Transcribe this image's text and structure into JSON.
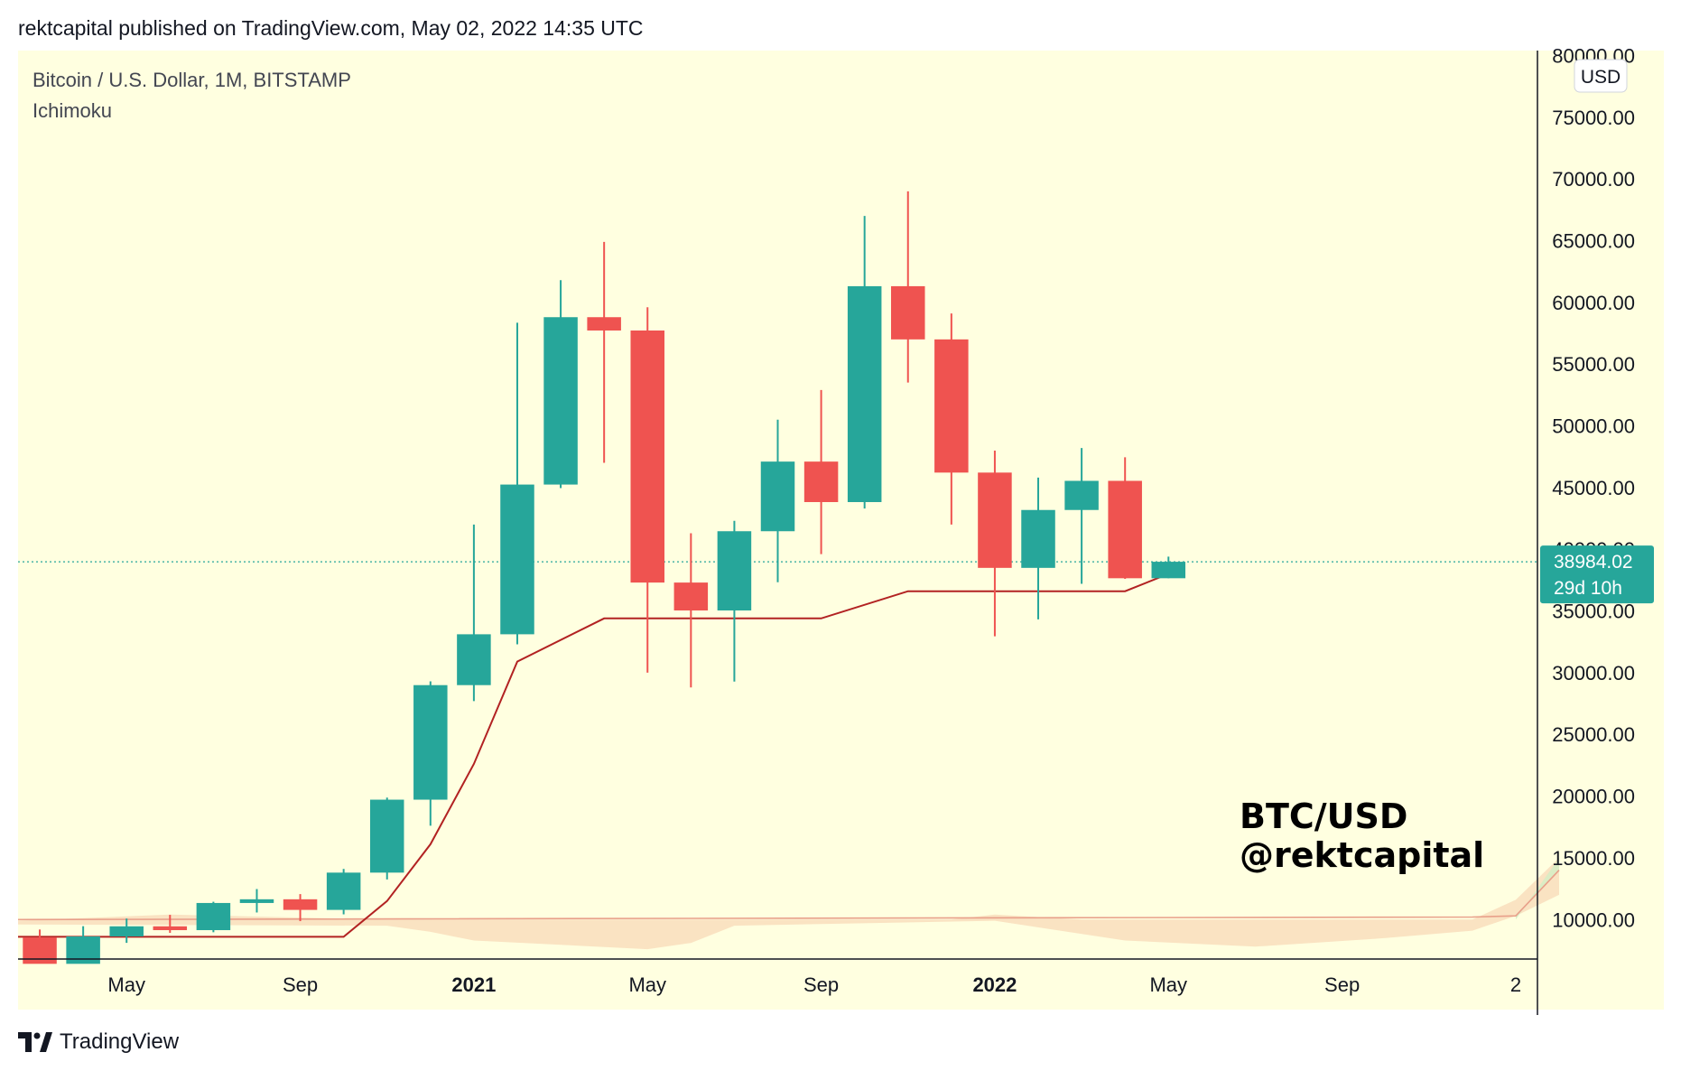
{
  "header": {
    "attribution": "rektcapital published on TradingView.com, May 02, 2022 14:35 UTC"
  },
  "footer": {
    "brand": "TradingView",
    "logo": "tradingview-logo-icon"
  },
  "colors": {
    "background": "#ffffe0",
    "up": "#26a69a",
    "down": "#ef5350",
    "baseline": "#b22222",
    "cloud": "#f8d9b8",
    "cloud_green": "#d7ecc4",
    "axis": "#131722",
    "price_tag": "#26a69a"
  },
  "chart_data": {
    "type": "candlestick",
    "title": "Bitcoin / U.S. Dollar, 1M, BITSTAMP",
    "indicator": "Ichimoku",
    "watermark": [
      "BTC/USD",
      "@rektcapital"
    ],
    "currency_badge": "USD",
    "y_ticks": [
      "80000.00",
      "75000.00",
      "70000.00",
      "65000.00",
      "60000.00",
      "55000.00",
      "50000.00",
      "45000.00",
      "40000.00",
      "35000.00",
      "30000.00",
      "25000.00",
      "20000.00",
      "15000.00",
      "10000.00"
    ],
    "ylim": [
      6800,
      80400
    ],
    "x_ticks": [
      {
        "label": "May",
        "month": "2020-05",
        "bold": false
      },
      {
        "label": "Sep",
        "month": "2020-09",
        "bold": false
      },
      {
        "label": "2021",
        "month": "2021-01",
        "bold": true
      },
      {
        "label": "May",
        "month": "2021-05",
        "bold": false
      },
      {
        "label": "Sep",
        "month": "2021-09",
        "bold": false
      },
      {
        "label": "2022",
        "month": "2022-01",
        "bold": true
      },
      {
        "label": "May",
        "month": "2022-05",
        "bold": false
      },
      {
        "label": "Sep",
        "month": "2022-09",
        "bold": false
      },
      {
        "label": "2",
        "month": "2023-01",
        "bold": false
      }
    ],
    "x_range": [
      "2020-03",
      "2023-02"
    ],
    "last_price": {
      "value": 38984.02,
      "label": "38984.02",
      "countdown": "29d 10h"
    },
    "candles": [
      {
        "month": "2020-03",
        "open": 8550,
        "high": 9190,
        "low": 6800,
        "close": 6410
      },
      {
        "month": "2020-04",
        "open": 6410,
        "high": 9460,
        "low": 6150,
        "close": 8630
      },
      {
        "month": "2020-05",
        "open": 8630,
        "high": 10080,
        "low": 8110,
        "close": 9450
      },
      {
        "month": "2020-06",
        "open": 9450,
        "high": 10380,
        "low": 8920,
        "close": 9140
      },
      {
        "month": "2020-07",
        "open": 9140,
        "high": 11440,
        "low": 8970,
        "close": 11340
      },
      {
        "month": "2020-08",
        "open": 11340,
        "high": 12470,
        "low": 10570,
        "close": 11640
      },
      {
        "month": "2020-09",
        "open": 11640,
        "high": 12060,
        "low": 9870,
        "close": 10780
      },
      {
        "month": "2020-10",
        "open": 10780,
        "high": 14100,
        "low": 10420,
        "close": 13800
      },
      {
        "month": "2020-11",
        "open": 13800,
        "high": 19880,
        "low": 13250,
        "close": 19710
      },
      {
        "month": "2020-12",
        "open": 19710,
        "high": 29300,
        "low": 17600,
        "close": 28990
      },
      {
        "month": "2021-01",
        "open": 28990,
        "high": 42000,
        "low": 27700,
        "close": 33110
      },
      {
        "month": "2021-02",
        "open": 33110,
        "high": 58350,
        "low": 32300,
        "close": 45240
      },
      {
        "month": "2021-03",
        "open": 45240,
        "high": 61800,
        "low": 44950,
        "close": 58800
      },
      {
        "month": "2021-04",
        "open": 58800,
        "high": 64900,
        "low": 47000,
        "close": 57720
      },
      {
        "month": "2021-05",
        "open": 57720,
        "high": 59600,
        "low": 30000,
        "close": 37300
      },
      {
        "month": "2021-06",
        "open": 37300,
        "high": 41300,
        "low": 28800,
        "close": 35040
      },
      {
        "month": "2021-07",
        "open": 35040,
        "high": 42300,
        "low": 29280,
        "close": 41460
      },
      {
        "month": "2021-08",
        "open": 41460,
        "high": 50500,
        "low": 37330,
        "close": 47100
      },
      {
        "month": "2021-09",
        "open": 47100,
        "high": 52900,
        "low": 39600,
        "close": 43820
      },
      {
        "month": "2021-10",
        "open": 43820,
        "high": 67000,
        "low": 43300,
        "close": 61310
      },
      {
        "month": "2021-11",
        "open": 61310,
        "high": 69000,
        "low": 53500,
        "close": 57000
      },
      {
        "month": "2021-12",
        "open": 57000,
        "high": 59100,
        "low": 42000,
        "close": 46210
      },
      {
        "month": "2022-01",
        "open": 46210,
        "high": 47990,
        "low": 32950,
        "close": 38490
      },
      {
        "month": "2022-02",
        "open": 38490,
        "high": 45800,
        "low": 34320,
        "close": 43180
      },
      {
        "month": "2022-03",
        "open": 43180,
        "high": 48200,
        "low": 37200,
        "close": 45540
      },
      {
        "month": "2022-04",
        "open": 45540,
        "high": 47450,
        "low": 37600,
        "close": 37650
      },
      {
        "month": "2022-05",
        "open": 37650,
        "high": 39400,
        "low": 37650,
        "close": 38984
      }
    ],
    "kijun_line": [
      {
        "month": "2020-03",
        "value": 8600
      },
      {
        "month": "2020-10",
        "value": 8600
      },
      {
        "month": "2020-11",
        "value": 11500
      },
      {
        "month": "2020-12",
        "value": 16100
      },
      {
        "month": "2021-01",
        "value": 22600
      },
      {
        "month": "2021-02",
        "value": 30900
      },
      {
        "month": "2021-04",
        "value": 34400
      },
      {
        "month": "2021-09",
        "value": 34400
      },
      {
        "month": "2021-11",
        "value": 36600
      },
      {
        "month": "2022-04",
        "value": 36600
      },
      {
        "month": "2022-05",
        "value": 38000
      }
    ],
    "cloud_lower": [
      {
        "month": "2020-03",
        "value": 9600
      },
      {
        "month": "2020-11",
        "value": 9500
      },
      {
        "month": "2020-12",
        "value": 9000
      },
      {
        "month": "2021-01",
        "value": 8300
      },
      {
        "month": "2021-05",
        "value": 7600
      },
      {
        "month": "2021-06",
        "value": 8100
      },
      {
        "month": "2021-07",
        "value": 9500
      },
      {
        "month": "2022-01",
        "value": 9900
      },
      {
        "month": "2022-04",
        "value": 8300
      },
      {
        "month": "2022-07",
        "value": 7800
      },
      {
        "month": "2022-10",
        "value": 8500
      },
      {
        "month": "2022-12",
        "value": 9100
      },
      {
        "month": "2023-01",
        "value": 10300
      },
      {
        "month": "2023-02",
        "value": 12000
      }
    ],
    "cloud_upper": [
      {
        "month": "2020-03",
        "value": 9900
      },
      {
        "month": "2020-06",
        "value": 10400
      },
      {
        "month": "2020-11",
        "value": 10000
      },
      {
        "month": "2021-12",
        "value": 10000
      },
      {
        "month": "2022-01",
        "value": 10400
      },
      {
        "month": "2022-03",
        "value": 10000
      },
      {
        "month": "2022-12",
        "value": 10000
      },
      {
        "month": "2023-01",
        "value": 11600
      },
      {
        "month": "2023-02",
        "value": 15000
      }
    ],
    "cloud_edge": [
      {
        "month": "2020-03",
        "value": 10000
      },
      {
        "month": "2022-12",
        "value": 10200
      },
      {
        "month": "2023-01",
        "value": 10300
      },
      {
        "month": "2023-02",
        "value": 14000
      }
    ]
  }
}
